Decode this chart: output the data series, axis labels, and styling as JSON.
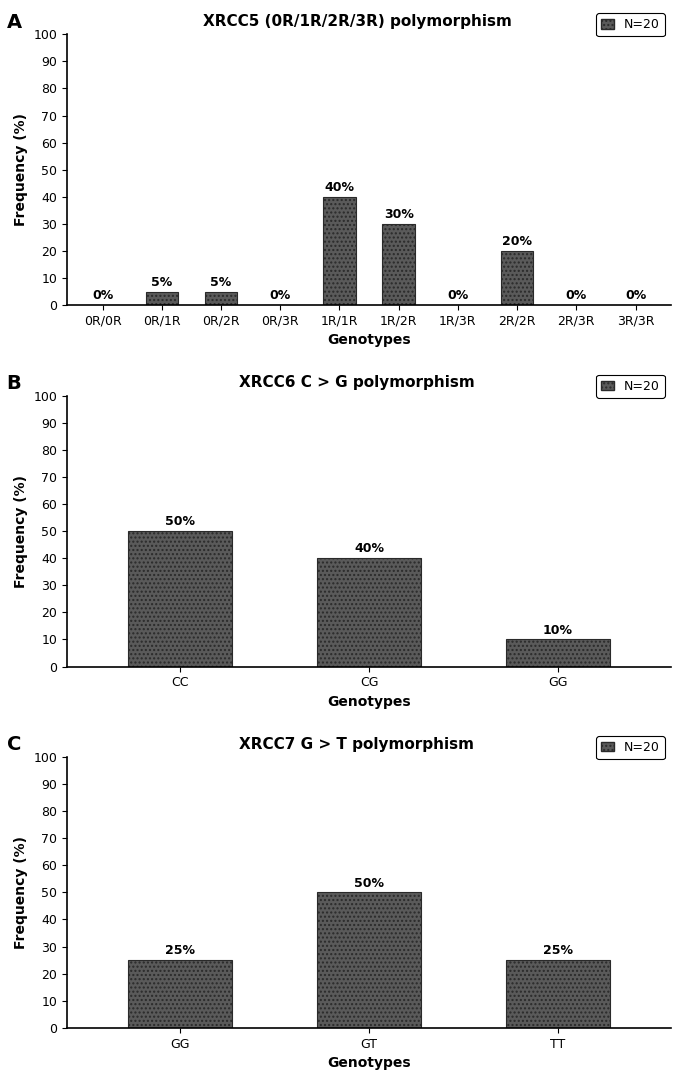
{
  "panel_A": {
    "title": "XRCC5 (0R/1R/2R/3R) polymorphism",
    "legend_label": "N=20",
    "categories": [
      "0R/0R",
      "0R/1R",
      "0R/2R",
      "0R/3R",
      "1R/1R",
      "1R/2R",
      "1R/3R",
      "2R/2R",
      "2R/3R",
      "3R/3R"
    ],
    "values": [
      0,
      5,
      5,
      0,
      40,
      30,
      0,
      20,
      0,
      0
    ],
    "labels": [
      "0%",
      "5%",
      "5%",
      "0%",
      "40%",
      "30%",
      "0%",
      "20%",
      "0%",
      "0%"
    ],
    "xlabel": "Genotypes",
    "ylabel": "Frequency (%)",
    "ylim": [
      0,
      100
    ],
    "yticks": [
      0,
      10,
      20,
      30,
      40,
      50,
      60,
      70,
      80,
      90,
      100
    ],
    "panel_label": "A"
  },
  "panel_B": {
    "title": "XRCC6 C > G polymorphism",
    "legend_label": "N=20",
    "categories": [
      "CC",
      "CG",
      "GG"
    ],
    "values": [
      50,
      40,
      10
    ],
    "labels": [
      "50%",
      "40%",
      "10%"
    ],
    "xlabel": "Genotypes",
    "ylabel": "Frequency (%)",
    "ylim": [
      0,
      100
    ],
    "yticks": [
      0,
      10,
      20,
      30,
      40,
      50,
      60,
      70,
      80,
      90,
      100
    ],
    "panel_label": "B"
  },
  "panel_C": {
    "title": "XRCC7 G > T polymorphism",
    "legend_label": "N=20",
    "categories": [
      "GG",
      "GT",
      "TT"
    ],
    "values": [
      25,
      50,
      25
    ],
    "labels": [
      "25%",
      "50%",
      "25%"
    ],
    "xlabel": "Genotypes",
    "ylabel": "Frequency (%)",
    "ylim": [
      0,
      100
    ],
    "yticks": [
      0,
      10,
      20,
      30,
      40,
      50,
      60,
      70,
      80,
      90,
      100
    ],
    "panel_label": "C"
  },
  "bar_color": "#5a5a5a",
  "bar_hatch": "....",
  "bar_edgecolor": "#2a2a2a",
  "bg_color": "#ffffff",
  "label_fontsize": 9,
  "tick_fontsize": 9,
  "title_fontsize": 11,
  "axis_label_fontsize": 10,
  "panel_label_fontsize": 14
}
